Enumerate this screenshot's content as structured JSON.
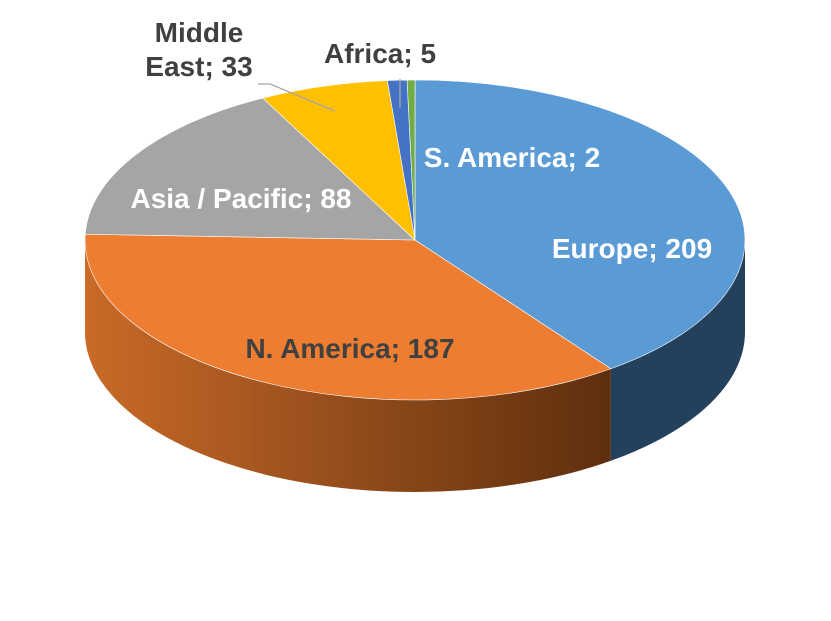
{
  "chart_data": {
    "type": "pie",
    "style": "3d",
    "categories": [
      "Europe",
      "N. America",
      "Asia / Pacific",
      "Middle East",
      "Africa",
      "S. America"
    ],
    "values": [
      209,
      187,
      88,
      33,
      5,
      2
    ],
    "labels": [
      "Europe; 209",
      "N. America; 187",
      "Asia / Pacific; 88",
      "Middle\nEast; 33",
      "Africa; 5",
      "S. America; 2"
    ],
    "colors": [
      "#5B9BD5",
      "#ED7D31",
      "#A5A5A5",
      "#FFC000",
      "#4472C4",
      "#70AD47"
    ],
    "side_colors": [
      "#23405C",
      "#8A4A1C",
      "#6E6E6E",
      "#B38700",
      "#2C4C85",
      "#4A7A2E"
    ],
    "title": "",
    "legend": "none",
    "data_labels": "category; value"
  }
}
